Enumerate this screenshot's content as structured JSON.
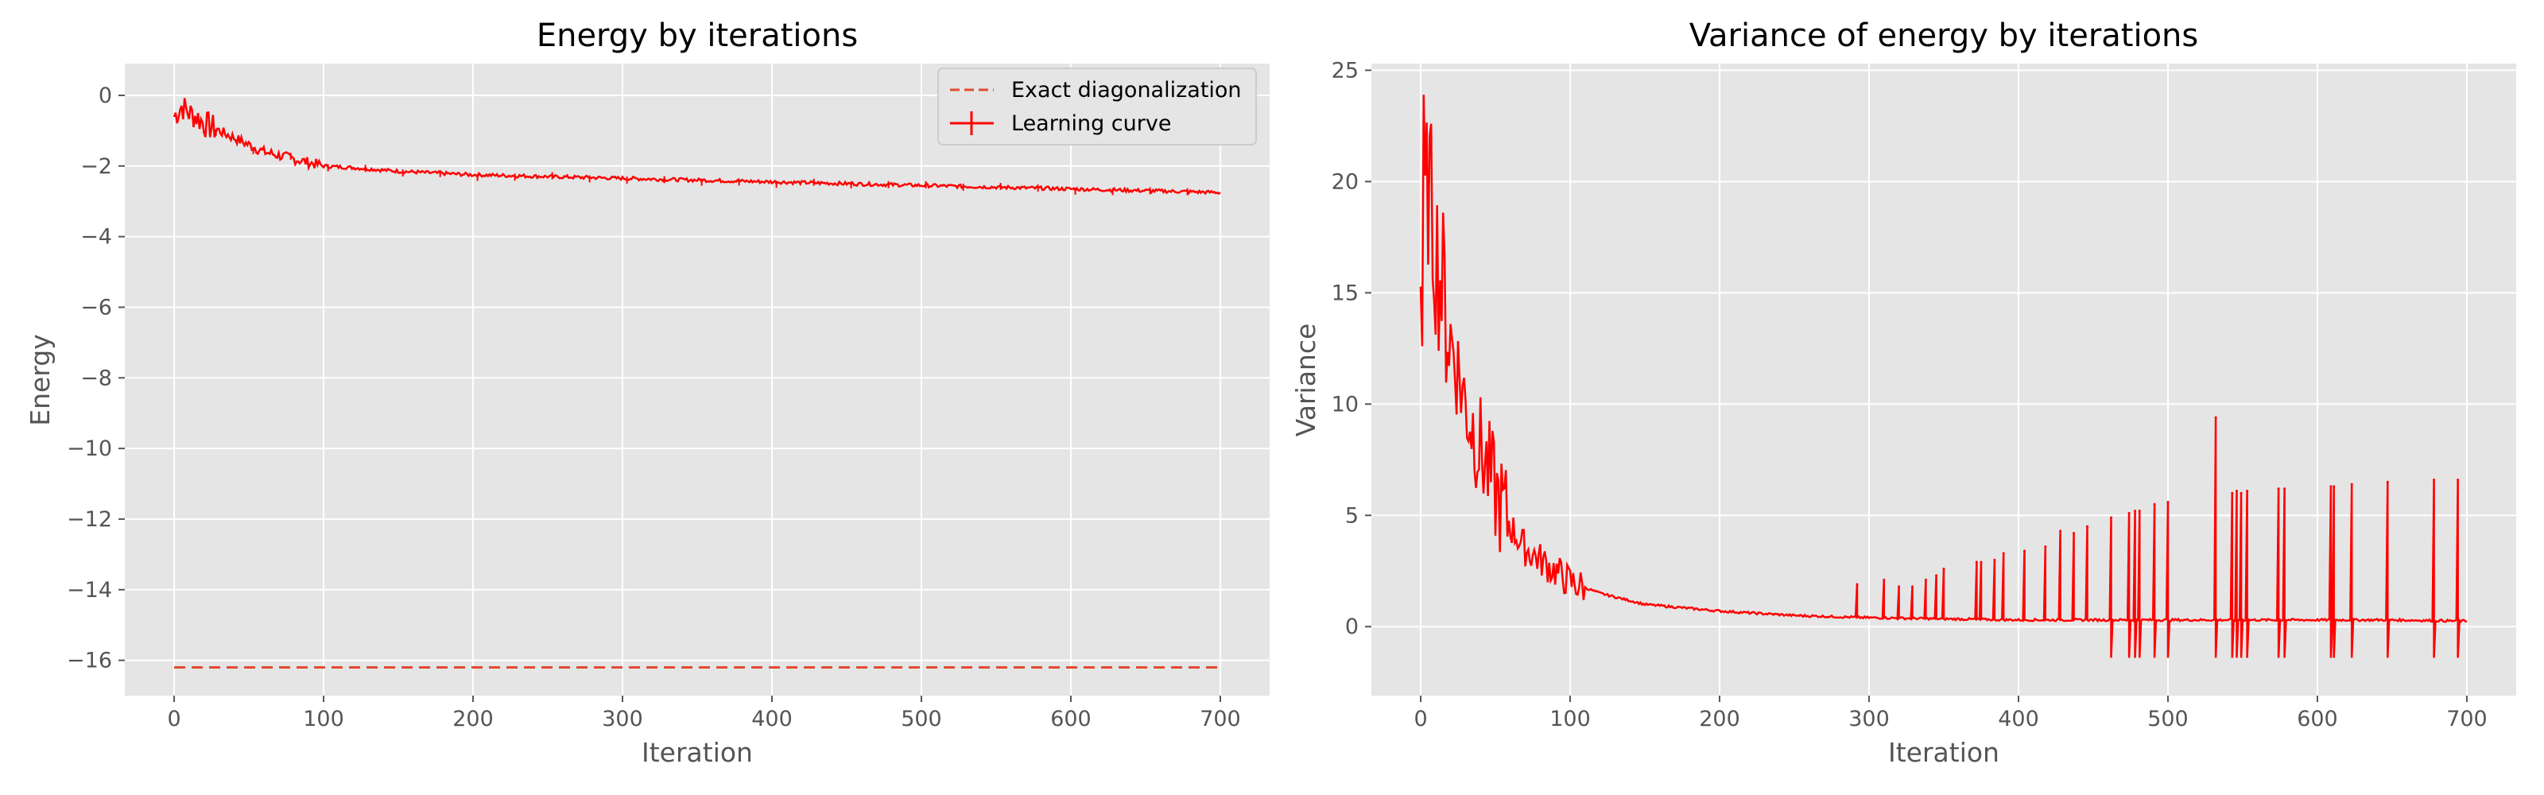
{
  "chart_data": [
    {
      "type": "line",
      "title": "Energy by iterations",
      "xlabel": "Iteration",
      "ylabel": "Energy",
      "xlim": [
        -33,
        733
      ],
      "ylim": [
        -17,
        0.9
      ],
      "xticks": [
        0,
        100,
        200,
        300,
        400,
        500,
        600,
        700
      ],
      "yticks": [
        0,
        -2,
        -4,
        -6,
        -8,
        -10,
        -12,
        -14,
        -16
      ],
      "xtick_labels": [
        "0",
        "100",
        "200",
        "300",
        "400",
        "500",
        "600",
        "700"
      ],
      "ytick_labels": [
        "0",
        "−2",
        "−4",
        "−6",
        "−8",
        "−10",
        "−12",
        "−14",
        "−16"
      ],
      "grid": true,
      "legend_position": "top-right",
      "series": [
        {
          "name": "Exact diagonalization",
          "style": "dashed",
          "color": "#e24a33",
          "x": [
            0,
            700
          ],
          "y": [
            -16.2,
            -16.2
          ]
        },
        {
          "name": "Learning curve",
          "style": "solid with error bars",
          "color": "#ff0000",
          "x": [
            0,
            5,
            10,
            15,
            20,
            25,
            30,
            40,
            50,
            60,
            70,
            80,
            90,
            100,
            120,
            150,
            200,
            250,
            300,
            350,
            400,
            450,
            500,
            550,
            600,
            650,
            700
          ],
          "y": [
            -0.6,
            -0.3,
            -0.5,
            -0.6,
            -0.8,
            -0.9,
            -1.0,
            -1.2,
            -1.4,
            -1.6,
            -1.7,
            -1.8,
            -1.9,
            -2.0,
            -2.05,
            -2.15,
            -2.25,
            -2.3,
            -2.35,
            -2.4,
            -2.45,
            -2.5,
            -2.55,
            -2.6,
            -2.65,
            -2.7,
            -2.75
          ]
        }
      ]
    },
    {
      "type": "line",
      "title": "Variance of energy by iterations",
      "xlabel": "Iteration",
      "ylabel": "Variance",
      "xlim": [
        -33,
        733
      ],
      "ylim": [
        -3.1,
        25.3
      ],
      "xticks": [
        0,
        100,
        200,
        300,
        400,
        500,
        600,
        700
      ],
      "yticks": [
        0,
        5,
        10,
        15,
        20,
        25
      ],
      "xtick_labels": [
        "0",
        "100",
        "200",
        "300",
        "400",
        "500",
        "600",
        "700"
      ],
      "ytick_labels": [
        "0",
        "5",
        "10",
        "15",
        "20",
        "25"
      ],
      "grid": true,
      "series": [
        {
          "color": "#ff0000",
          "x": [
            0,
            5,
            10,
            15,
            20,
            25,
            30,
            40,
            50,
            60,
            70,
            80,
            90,
            100,
            120,
            150,
            200,
            250,
            300,
            350,
            400,
            450,
            500,
            550,
            600,
            650,
            700
          ],
          "y": [
            16.0,
            20.0,
            17.0,
            15.0,
            13.0,
            11.5,
            10.0,
            8.0,
            6.0,
            4.5,
            3.5,
            3.0,
            2.5,
            2.0,
            1.5,
            1.0,
            0.7,
            0.5,
            0.4,
            0.35,
            0.3,
            0.3,
            0.3,
            0.3,
            0.3,
            0.3,
            0.25
          ]
        }
      ],
      "spikes": [
        {
          "x": 292,
          "y": 1.9
        },
        {
          "x": 310,
          "y": 2.1
        },
        {
          "x": 320,
          "y": 1.8
        },
        {
          "x": 329,
          "y": 1.8
        },
        {
          "x": 338,
          "y": 2.1
        },
        {
          "x": 345,
          "y": 2.3
        },
        {
          "x": 350,
          "y": 2.6
        },
        {
          "x": 372,
          "y": 2.9
        },
        {
          "x": 375,
          "y": 2.9
        },
        {
          "x": 384,
          "y": 3.0
        },
        {
          "x": 390,
          "y": 3.3
        },
        {
          "x": 404,
          "y": 3.4
        },
        {
          "x": 418,
          "y": 3.6
        },
        {
          "x": 428,
          "y": 4.3
        },
        {
          "x": 437,
          "y": 4.2
        },
        {
          "x": 446,
          "y": 4.5
        },
        {
          "x": 462,
          "y": 4.9
        },
        {
          "x": 474,
          "y": 5.1
        },
        {
          "x": 478,
          "y": 5.2
        },
        {
          "x": 481,
          "y": 5.2
        },
        {
          "x": 491,
          "y": 5.5
        },
        {
          "x": 500,
          "y": 5.6
        },
        {
          "x": 532,
          "y": 9.4
        },
        {
          "x": 543,
          "y": 6.0
        },
        {
          "x": 546,
          "y": 6.1
        },
        {
          "x": 549,
          "y": 6.0
        },
        {
          "x": 553,
          "y": 6.1
        },
        {
          "x": 574,
          "y": 6.2
        },
        {
          "x": 578,
          "y": 6.2
        },
        {
          "x": 609,
          "y": 6.3
        },
        {
          "x": 611,
          "y": 6.3
        },
        {
          "x": 623,
          "y": 6.4
        },
        {
          "x": 647,
          "y": 6.5
        },
        {
          "x": 678,
          "y": 6.6
        },
        {
          "x": 694,
          "y": 6.6
        }
      ]
    }
  ]
}
